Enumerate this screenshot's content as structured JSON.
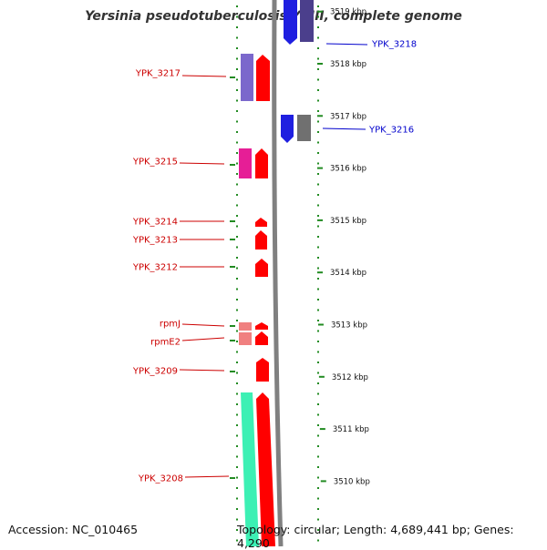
{
  "header": {
    "title": "Yersinia pseudotuberculosis YPIII, complete genome"
  },
  "footer": {
    "accession": "Accession: NC_010465",
    "topology": "Topology: circular; Length: 4,689,441 bp; Genes: 4,290"
  },
  "colors": {
    "minus_strand_label": "#cc0000",
    "plus_strand_label": "#0000cc",
    "backbone": "#808080",
    "dots": "#228b22"
  },
  "scale": {
    "unit": "kbp",
    "ticks": [
      {
        "label": "3519 kbp",
        "kbp": 3519
      },
      {
        "label": "3518 kbp",
        "kbp": 3518
      },
      {
        "label": "3517 kbp",
        "kbp": 3517
      },
      {
        "label": "3516 kbp",
        "kbp": 3516
      },
      {
        "label": "3515 kbp",
        "kbp": 3515
      },
      {
        "label": "3514 kbp",
        "kbp": 3514
      },
      {
        "label": "3513 kbp",
        "kbp": 3513
      },
      {
        "label": "3512 kbp",
        "kbp": 3512
      },
      {
        "label": "3511 kbp",
        "kbp": 3511
      },
      {
        "label": "3510 kbp",
        "kbp": 3510
      }
    ]
  },
  "genes_left": [
    {
      "name": "YPK_3217",
      "color": "#7b68cc"
    },
    {
      "name": "YPK_3215",
      "color": "#e61e96"
    },
    {
      "name": "YPK_3214",
      "color": "#ff0000"
    },
    {
      "name": "YPK_3213",
      "color": "#ff0000"
    },
    {
      "name": "YPK_3212",
      "color": "#ff0000"
    },
    {
      "name": "rpmJ",
      "color": "#f08080"
    },
    {
      "name": "rpmE2",
      "color": "#f08080"
    },
    {
      "name": "YPK_3209",
      "color": "#ff0000"
    },
    {
      "name": "YPK_3208",
      "color": "#3cf0b4"
    }
  ],
  "genes_right": [
    {
      "name": "YPK_3218",
      "color": "#4b3f8c"
    },
    {
      "name": "YPK_3216",
      "color": "#707070"
    }
  ]
}
